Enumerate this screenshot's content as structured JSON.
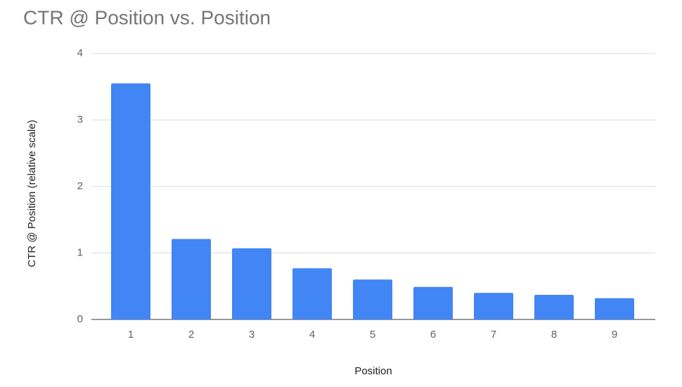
{
  "chart_data": {
    "type": "bar",
    "title": "CTR @ Position vs. Position",
    "x_label": "Position",
    "y_label": "CTR @ Position (relative scale)",
    "categories": [
      "1",
      "2",
      "3",
      "4",
      "5",
      "6",
      "7",
      "8",
      "9"
    ],
    "values": [
      3.55,
      1.21,
      1.07,
      0.77,
      0.6,
      0.49,
      0.4,
      0.37,
      0.32
    ],
    "color": "#4285f4",
    "ylim": [
      0,
      4
    ],
    "yticks": [
      0,
      1,
      2,
      3,
      4
    ],
    "grid": true
  }
}
